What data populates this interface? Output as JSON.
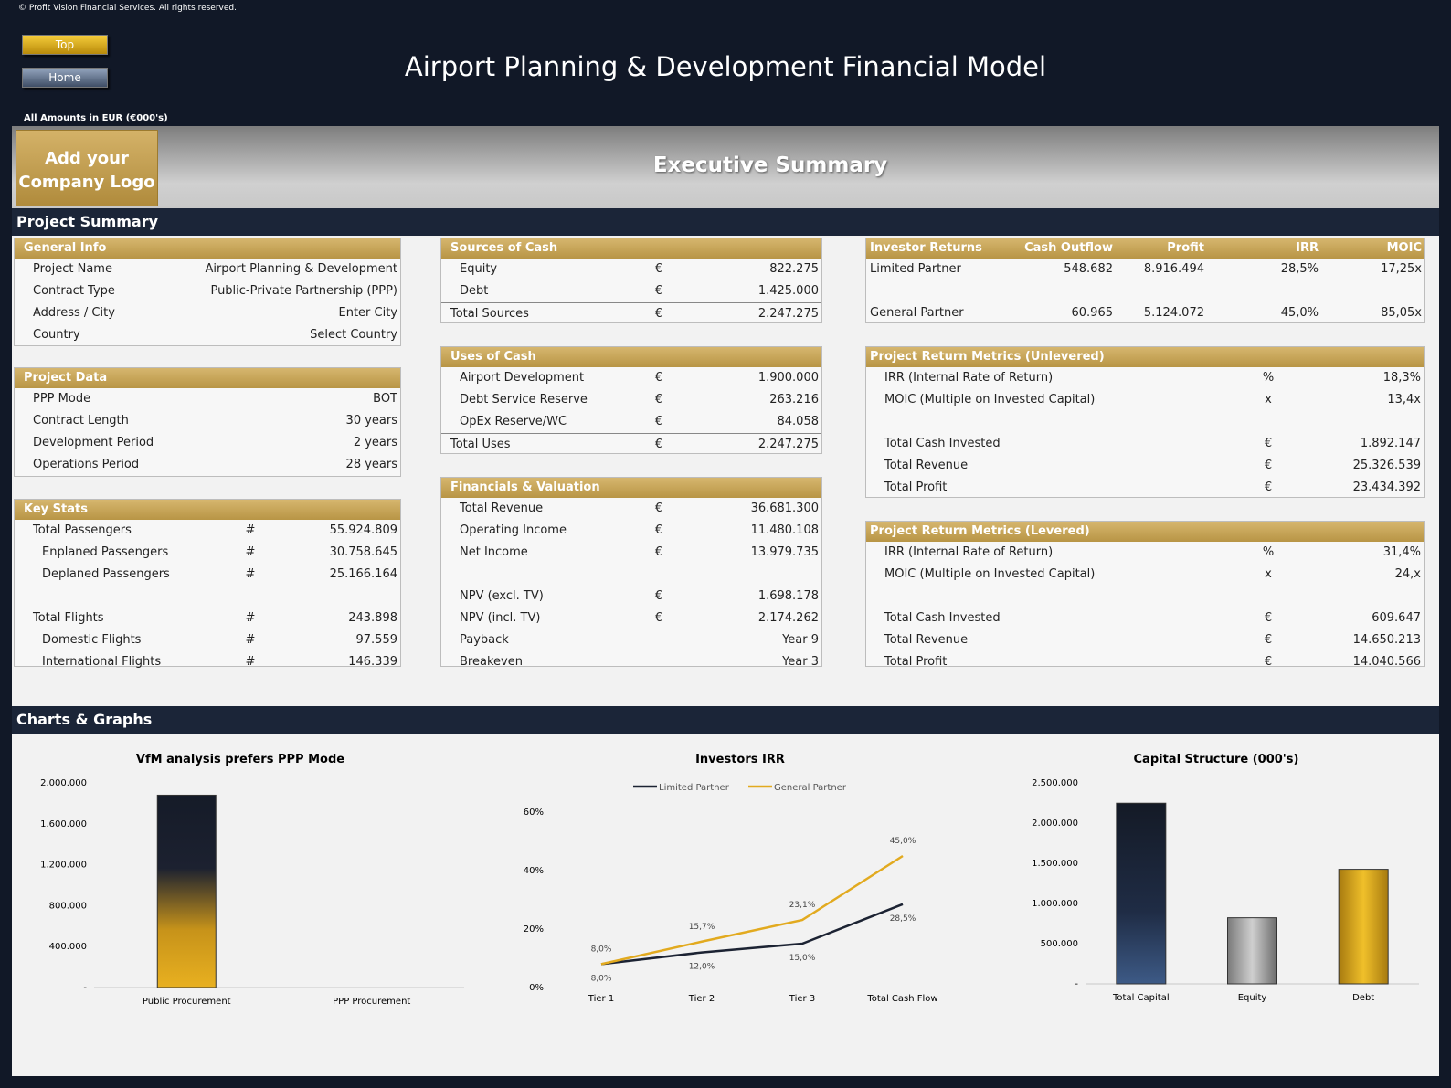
{
  "copyright": "© Profit Vision Financial Services. All rights reserved.",
  "nav": {
    "top_label": "Top",
    "home_label": "Home"
  },
  "app_title": "Airport Planning & Development Financial Model",
  "amounts_note": "All Amounts in  EUR (€000's)",
  "banner": {
    "logo_line1": "Add your",
    "logo_line2": "Company Logo",
    "title": "Executive Summary"
  },
  "sections": {
    "project_summary": "Project Summary",
    "charts": "Charts & Graphs"
  },
  "general_info": {
    "title": "General Info",
    "rows": [
      {
        "label": "Project Name",
        "value": "Airport Planning & Development"
      },
      {
        "label": "Contract Type",
        "value": "Public-Private Partnership (PPP)"
      },
      {
        "label": "Address / City",
        "value": "Enter City"
      },
      {
        "label": "Country",
        "value": "Select Country"
      }
    ]
  },
  "project_data": {
    "title": "Project Data",
    "rows": [
      {
        "label": "PPP Mode",
        "value": "BOT"
      },
      {
        "label": "Contract Length",
        "value": "30 years"
      },
      {
        "label": "Development Period",
        "value": "2 years"
      },
      {
        "label": "Operations Period",
        "value": "28 years"
      }
    ]
  },
  "key_stats": {
    "title": "Key Stats",
    "rows": [
      {
        "label": "Total Passengers",
        "unit": "#",
        "value": "55.924.809"
      },
      {
        "label": "Enplaned Passengers",
        "unit": "#",
        "value": "30.758.645"
      },
      {
        "label": "Deplaned Passengers",
        "unit": "#",
        "value": "25.166.164"
      },
      {
        "label": "Total Flights",
        "unit": "#",
        "value": "243.898"
      },
      {
        "label": "Domestic Flights",
        "unit": "#",
        "value": "97.559"
      },
      {
        "label": "International Flights",
        "unit": "#",
        "value": "146.339"
      }
    ]
  },
  "sources": {
    "title": "Sources of Cash",
    "rows": [
      {
        "label": "Equity",
        "unit": "€",
        "value": "822.275"
      },
      {
        "label": "Debt",
        "unit": "€",
        "value": "1.425.000"
      }
    ],
    "total": {
      "label": "Total Sources",
      "unit": "€",
      "value": "2.247.275"
    }
  },
  "uses": {
    "title": "Uses of Cash",
    "rows": [
      {
        "label": "Airport Development",
        "unit": "€",
        "value": "1.900.000"
      },
      {
        "label": "Debt Service Reserve",
        "unit": "€",
        "value": "263.216"
      },
      {
        "label": "OpEx Reserve/WC",
        "unit": "€",
        "value": "84.058"
      }
    ],
    "total": {
      "label": "Total Uses",
      "unit": "€",
      "value": "2.247.275"
    }
  },
  "financials": {
    "title": "Financials & Valuation",
    "rows": [
      {
        "label": "Total Revenue",
        "unit": "€",
        "value": "36.681.300"
      },
      {
        "label": "Operating Income",
        "unit": "€",
        "value": "11.480.108"
      },
      {
        "label": "Net Income",
        "unit": "€",
        "value": "13.979.735"
      },
      {
        "label": "NPV (excl. TV)",
        "unit": "€",
        "value": "1.698.178"
      },
      {
        "label": "NPV (incl. TV)",
        "unit": "€",
        "value": "2.174.262"
      },
      {
        "label": "Payback",
        "unit": "",
        "value": "Year 9"
      },
      {
        "label": "Breakeven",
        "unit": "",
        "value": "Year 3"
      }
    ]
  },
  "investor_returns": {
    "headers": [
      "Investor Returns",
      "Cash Outflow",
      "Profit",
      "IRR",
      "MOIC"
    ],
    "rows": [
      {
        "label": "Limited Partner",
        "outflow": "548.682",
        "profit": "8.916.494",
        "irr": "28,5%",
        "moic": "17,25x"
      },
      {
        "label": "General Partner",
        "outflow": "60.965",
        "profit": "5.124.072",
        "irr": "45,0%",
        "moic": "85,05x"
      }
    ]
  },
  "unlevered": {
    "title": "Project Return Metrics (Unlevered)",
    "rows": [
      {
        "label": "IRR (Internal Rate of Return)",
        "unit": "%",
        "value": "18,3%"
      },
      {
        "label": "MOIC (Multiple on Invested Capital)",
        "unit": "x",
        "value": "13,4x"
      },
      {
        "label": "Total Cash Invested",
        "unit": "€",
        "value": "1.892.147"
      },
      {
        "label": "Total Revenue",
        "unit": "€",
        "value": "25.326.539"
      },
      {
        "label": "Total Profit",
        "unit": "€",
        "value": "23.434.392"
      }
    ]
  },
  "levered": {
    "title": "Project Return Metrics (Levered)",
    "rows": [
      {
        "label": "IRR (Internal Rate of Return)",
        "unit": "%",
        "value": "31,4%"
      },
      {
        "label": "MOIC (Multiple on Invested Capital)",
        "unit": "x",
        "value": "24,x"
      },
      {
        "label": "Total Cash Invested",
        "unit": "€",
        "value": "609.647"
      },
      {
        "label": "Total Revenue",
        "unit": "€",
        "value": "14.650.213"
      },
      {
        "label": "Total Profit",
        "unit": "€",
        "value": "14.040.566"
      }
    ]
  },
  "colors": {
    "navy": "#1b2538",
    "gold": "#c9a454",
    "dark": "#111827",
    "line_dark": "#1c2333",
    "line_gold": "#e2aa1f"
  },
  "chart_data": [
    {
      "type": "bar",
      "title": "VfM analysis prefers PPP Mode",
      "categories": [
        "Public Procurement",
        "PPP Procurement"
      ],
      "values": [
        1880000,
        0
      ],
      "ylim": [
        0,
        2000000
      ],
      "yticks": [
        "-",
        "400.000",
        "800.000",
        "1.200.000",
        "1.600.000",
        "2.000.000"
      ]
    },
    {
      "type": "line",
      "title": "Investors IRR",
      "categories": [
        "Tier 1",
        "Tier 2",
        "Tier 3",
        "Total Cash Flow"
      ],
      "ylim": [
        0,
        60
      ],
      "yticks": [
        "0%",
        "20%",
        "40%",
        "60%"
      ],
      "legend": "top",
      "series": [
        {
          "name": "Limited Partner",
          "values": [
            8.0,
            12.0,
            15.0,
            28.5
          ],
          "labels": [
            "8,0%",
            "12,0%",
            "15,0%",
            "28,5%"
          ]
        },
        {
          "name": "General Partner",
          "values": [
            8.0,
            15.7,
            23.1,
            45.0
          ],
          "labels": [
            "8,0%",
            "15,7%",
            "23,1%",
            "45,0%"
          ]
        }
      ]
    },
    {
      "type": "bar",
      "title": "Capital Structure (000's)",
      "categories": [
        "Total Capital",
        "Equity",
        "Debt"
      ],
      "values": [
        2247275,
        822275,
        1425000
      ],
      "ylim": [
        0,
        2500000
      ],
      "yticks": [
        "-",
        "500.000",
        "1.000.000",
        "1.500.000",
        "2.000.000",
        "2.500.000"
      ]
    }
  ]
}
